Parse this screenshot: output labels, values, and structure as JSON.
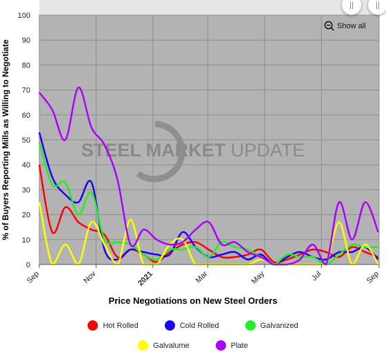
{
  "watermark": "STEEL MARKET UPDATE",
  "show_all_label": "Show all",
  "chart_data": {
    "type": "line",
    "title": "",
    "xlabel": "Price Negotiations on New Steel Orders",
    "ylabel": "% of Buyers Reporting Mills as Willing to Negotiate",
    "ylim": [
      0,
      100
    ],
    "yticks": [
      0,
      10,
      20,
      30,
      40,
      50,
      60,
      70,
      80,
      90,
      100
    ],
    "x_ticks": [
      {
        "label": "Sep",
        "bold": false
      },
      {
        "label": "Nov",
        "bold": false
      },
      {
        "label": "2021",
        "bold": true
      },
      {
        "label": "Mar",
        "bold": false
      },
      {
        "label": "May",
        "bold": false
      },
      {
        "label": "Jul",
        "bold": false
      },
      {
        "label": "Sep",
        "bold": false
      }
    ],
    "grid": true,
    "legend_position": "bottom",
    "x": [
      "2020-09-01",
      "2020-09-15",
      "2020-09-29",
      "2020-10-13",
      "2020-10-27",
      "2020-11-10",
      "2020-11-24",
      "2020-12-08",
      "2020-12-22",
      "2021-01-05",
      "2021-01-19",
      "2021-02-02",
      "2021-02-16",
      "2021-03-02",
      "2021-03-16",
      "2021-03-30",
      "2021-04-13",
      "2021-04-27",
      "2021-05-11",
      "2021-05-25",
      "2021-06-08",
      "2021-06-22",
      "2021-07-06",
      "2021-07-20",
      "2021-08-03",
      "2021-08-17",
      "2021-08-31"
    ],
    "series": [
      {
        "name": "Hot Rolled",
        "color": "#ff0000",
        "values": [
          40,
          13,
          23,
          17,
          14,
          12,
          3,
          6,
          4,
          1,
          5,
          8,
          9,
          6,
          3,
          3,
          4,
          6,
          1,
          2,
          4,
          6,
          5,
          3,
          7,
          5,
          3
        ]
      },
      {
        "name": "Cold Rolled",
        "color": "#1a00ff",
        "values": [
          53,
          35,
          28,
          25,
          33,
          6,
          2,
          6,
          5,
          4,
          4,
          13,
          7,
          3,
          4,
          5,
          2,
          4,
          0,
          3,
          5,
          3,
          2,
          5,
          5,
          7,
          2
        ]
      },
      {
        "name": "Galvanized",
        "color": "#22ee22",
        "values": [
          49,
          32,
          33,
          20,
          29,
          10,
          9,
          8,
          4,
          2,
          6,
          6,
          7,
          3,
          9,
          7,
          6,
          3,
          0,
          4,
          3,
          3,
          0,
          4,
          8,
          7,
          7
        ]
      },
      {
        "name": "Galvalume",
        "color": "#ffff00",
        "values": [
          25,
          0,
          8,
          0,
          17,
          8,
          0,
          18,
          0,
          0,
          8,
          10,
          0,
          0,
          0,
          0,
          0,
          2,
          0,
          0,
          0,
          0,
          0,
          17,
          0,
          8,
          0
        ]
      },
      {
        "name": "Plate",
        "color": "#aa00ff",
        "values": [
          69,
          62,
          50,
          71,
          55,
          48,
          34,
          8,
          14,
          10,
          8,
          9,
          14,
          17,
          8,
          9,
          5,
          3,
          0,
          0,
          2,
          8,
          0,
          25,
          10,
          25,
          13
        ]
      }
    ]
  }
}
